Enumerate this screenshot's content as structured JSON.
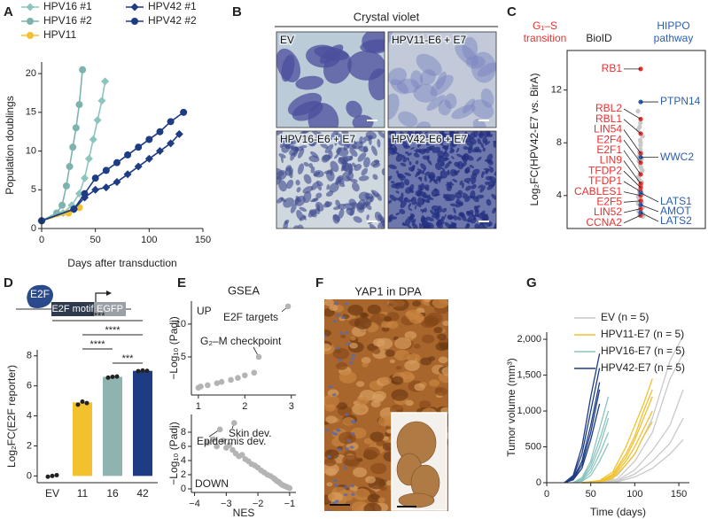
{
  "chart_data": [
    {
      "panel": "A",
      "type": "line",
      "xlabel": "Days after transduction",
      "ylabel": "Population doublings",
      "xlim": [
        0,
        150
      ],
      "ylim": [
        0,
        21.5
      ],
      "xticks": [
        0,
        50,
        100,
        150
      ],
      "yticks": [
        0,
        5,
        10,
        15,
        20
      ],
      "series": [
        {
          "name": "HPV16 #1",
          "color": "#8cc5be",
          "marker": "diamond",
          "x": [
            0,
            20,
            28,
            35,
            40,
            44,
            48,
            52,
            56,
            59
          ],
          "values": [
            1,
            2,
            3,
            4.5,
            6.5,
            9,
            11.5,
            14,
            16.5,
            19
          ]
        },
        {
          "name": "HPV16 #2",
          "color": "#7db3ae",
          "marker": "circle",
          "x": [
            0,
            14,
            19,
            23,
            26,
            29,
            32,
            35,
            38
          ],
          "values": [
            1,
            2,
            3,
            5.5,
            8,
            10.5,
            13,
            16,
            20.5
          ]
        },
        {
          "name": "HPV11",
          "color": "#f2c12e",
          "marker": "circle",
          "x": [
            0,
            25,
            35
          ],
          "values": [
            1,
            2,
            2.7
          ]
        },
        {
          "name": "HPV42 #1",
          "color": "#1d3c84",
          "marker": "diamond",
          "x": [
            0,
            30,
            40,
            50,
            60,
            70,
            80,
            90,
            100,
            110,
            120,
            128
          ],
          "values": [
            1,
            2.5,
            4,
            5,
            5.3,
            6,
            7,
            8,
            9,
            10,
            11,
            12.2
          ]
        },
        {
          "name": "HPV42 #2",
          "color": "#1d3c84",
          "marker": "circle",
          "x": [
            0,
            30,
            40,
            50,
            60,
            70,
            80,
            90,
            100,
            110,
            120,
            132
          ],
          "values": [
            1,
            2.5,
            4.5,
            6.5,
            7.5,
            8.5,
            9.5,
            10.5,
            11.5,
            12.5,
            13.8,
            15
          ]
        }
      ]
    },
    {
      "panel": "C",
      "type": "strip",
      "ylabel": "Log₂FC(HPV42-E7 vs. BirA)",
      "ylim": [
        1.5,
        15
      ],
      "yticks": [
        4,
        8,
        12
      ],
      "frame": true,
      "series": [
        {
          "name": "BioID",
          "color": "#c8c8c8",
          "values": [
            10.4,
            9.5,
            9.2,
            9.0,
            8.5,
            8.2,
            8.0,
            7.8,
            7.5,
            7.3,
            7.0,
            6.8,
            6.6,
            6.3,
            6.1,
            5.9,
            5.7,
            5.4,
            5.2,
            5.0,
            4.8,
            4.7,
            4.5,
            4.4,
            4.2,
            4.1,
            3.9,
            3.8,
            3.7,
            3.5,
            3.4,
            3.2,
            3.1,
            2.9,
            2.8,
            2.7,
            2.6,
            2.5,
            2.4
          ]
        },
        {
          "name": "G₁–S transition",
          "color": "#e8312f",
          "labels": [
            "RB1",
            "RBL2",
            "RBL1",
            "LIN54",
            "E2F4",
            "E2F1",
            "LIN9",
            "TFDP2",
            "TFDP1",
            "CABLES1",
            "E2F5",
            "LIN52",
            "CCNA2"
          ],
          "values": [
            13.6,
            9.8,
            8.7,
            7.2,
            6.5,
            5.6,
            4.9,
            4.6,
            4.3,
            4.0,
            3.6,
            3.0,
            2.5
          ]
        },
        {
          "name": "HIPPO pathway",
          "color": "#2b5fad",
          "labels": [
            "PTPN14",
            "WWC2",
            "LATS1",
            "AMOT",
            "LATS2"
          ],
          "values": [
            11.1,
            6.9,
            4.2,
            3.3,
            2.7
          ]
        }
      ]
    },
    {
      "panel": "D",
      "type": "bar",
      "ylabel": "Log₂FC(E2F reporter)",
      "categories": [
        "EV",
        "11",
        "16",
        "42"
      ],
      "values": [
        0,
        4.9,
        6.6,
        7.0
      ],
      "colors": [
        "#9a9a9a",
        "#f2c12e",
        "#8fb4b0",
        "#1d3c84"
      ],
      "points": [
        [
          -0.05,
          0,
          0.05
        ],
        [
          4.75,
          4.95,
          4.85
        ],
        [
          6.55,
          6.6,
          6.62
        ],
        [
          6.98,
          7.02,
          7.0
        ]
      ],
      "ylim": [
        -0.45,
        8.4
      ],
      "yticks": [
        0,
        2,
        4,
        6,
        8
      ],
      "significance": [
        "****",
        "****",
        "****",
        "***"
      ],
      "reporter": {
        "protein": "E2F",
        "motif": "E2F motif",
        "gene": "EGFP"
      }
    },
    {
      "panel": "E",
      "type": "scatter",
      "title": "GSEA",
      "ylabel": "−Log₁₀ (Padj)",
      "direction": "UP",
      "color": "#b4b4b4",
      "xlim": [
        0.85,
        3.1
      ],
      "ylim": [
        -0.8,
        13.5
      ],
      "xticks": [
        1,
        2,
        3
      ],
      "yticks": [
        5,
        10
      ],
      "x": [
        1.0,
        1.05,
        1.2,
        1.4,
        1.5,
        1.7,
        1.85,
        2.0,
        2.2
      ],
      "values": [
        0.3,
        0.5,
        0.7,
        1.0,
        1.2,
        1.5,
        1.8,
        2.2,
        2.6
      ],
      "labeled_points": [
        {
          "label": "G₂–M checkpoint",
          "x": 2.3,
          "y": 5.0
        },
        {
          "label": "E2F targets",
          "x": 2.93,
          "y": 12.7
        }
      ]
    },
    {
      "type": "scatter",
      "xlabel": "NES",
      "ylabel": "−Log₁₀ (Padj)",
      "direction": "DOWN",
      "color": "#b4b4b4",
      "xlim": [
        -4.1,
        -0.8
      ],
      "ylim": [
        -0.5,
        10.5
      ],
      "xticks": [
        {
          "value": -4,
          "label": "−4"
        },
        {
          "value": -3,
          "label": "−3"
        },
        {
          "value": -2,
          "label": "−2"
        },
        {
          "value": -1,
          "label": "−1"
        }
      ],
      "yticks": [
        0,
        2,
        4,
        6,
        8
      ],
      "x": [
        -3.6,
        -3.4,
        -3.3,
        -3.1,
        -3.0,
        -2.9,
        -2.8,
        -2.7,
        -2.6,
        -2.5,
        -2.4,
        -2.3,
        -2.2,
        -2.1,
        -2.0,
        -1.9,
        -1.8,
        -1.7,
        -1.6,
        -1.5,
        -1.45,
        -1.4,
        -1.35,
        -1.3,
        -1.25,
        -1.2,
        -1.15,
        -1.1,
        -1.05,
        -1.0
      ],
      "values": [
        6.5,
        7.0,
        6.0,
        6.8,
        5.8,
        6.2,
        5.5,
        5.0,
        4.6,
        4.8,
        4.2,
        3.9,
        3.5,
        3.3,
        3.0,
        2.6,
        2.3,
        2.0,
        1.8,
        1.5,
        1.3,
        1.1,
        1.0,
        0.8,
        0.6,
        0.5,
        0.4,
        0.3,
        0.2,
        0.1
      ],
      "labeled_points": [
        {
          "label": "Skin dev.",
          "x": -2.75,
          "y": 9.3
        },
        {
          "label": "Epidermis dev.",
          "x": -3.2,
          "y": 8.4
        }
      ]
    },
    {
      "panel": "G",
      "type": "line",
      "xlabel": "Time (days)",
      "ylabel": "Tumor volume (mm³)",
      "xlim": [
        0,
        162
      ],
      "ylim": [
        0,
        2100
      ],
      "xticks": [
        0,
        50,
        100,
        150
      ],
      "yticks": [
        0,
        500,
        {
          "value": 1000,
          "label": "1,000"
        },
        {
          "value": 1500,
          "label": "1,500"
        },
        {
          "value": 2000,
          "label": "2,000"
        }
      ],
      "groups": [
        {
          "name": "EV (n = 5)",
          "color": "#c9c9c9",
          "x": [
            40,
            60,
            80,
            100,
            120,
            140,
            155
          ],
          "lines": [
            [
              0,
              0,
              30,
              180,
              450,
              800,
              1300
            ],
            [
              0,
              10,
              50,
              300,
              700,
              1450,
              1800
            ],
            [
              0,
              0,
              20,
              120,
              300,
              550,
              900
            ],
            [
              0,
              20,
              100,
              400,
              900,
              1700,
              2050
            ],
            [
              0,
              0,
              10,
              80,
              200,
              400,
              600
            ]
          ]
        },
        {
          "name": "HPV11-E7 (n = 5)",
          "color": "#f2c12e",
          "x": [
            40,
            60,
            75,
            90,
            100,
            110,
            120
          ],
          "lines": [
            [
              0,
              20,
              100,
              350,
              600,
              900,
              1200
            ],
            [
              0,
              10,
              80,
              300,
              500,
              750,
              1000
            ],
            [
              0,
              30,
              150,
              500,
              800,
              1100,
              1450
            ],
            [
              0,
              5,
              60,
              250,
              400,
              650,
              850
            ],
            [
              0,
              15,
              120,
              400,
              650,
              1000,
              1300
            ]
          ]
        },
        {
          "name": "HPV16-E7 (n = 5)",
          "color": "#8cc5be",
          "x": [
            30,
            40,
            50,
            60,
            70
          ],
          "lines": [
            [
              0,
              50,
              250,
              600,
              1000
            ],
            [
              0,
              30,
              150,
              400,
              700
            ],
            [
              0,
              70,
              300,
              750,
              1200
            ],
            [
              0,
              20,
              100,
              300,
              550
            ],
            [
              0,
              40,
              200,
              500,
              900
            ]
          ]
        },
        {
          "name": "HPV42-E7 (n = 5)",
          "color": "#1d3c84",
          "x": [
            20,
            30,
            40,
            50,
            60
          ],
          "lines": [
            [
              0,
              50,
              250,
              700,
              1300
            ],
            [
              0,
              80,
              400,
              1000,
              1600
            ],
            [
              0,
              40,
              200,
              600,
              1100
            ],
            [
              0,
              100,
              500,
              1200,
              1800
            ],
            [
              0,
              60,
              300,
              800,
              1400
            ]
          ]
        }
      ]
    }
  ],
  "images": [
    {
      "panel": "B",
      "title": "Crystal violet",
      "tiles": [
        "EV",
        "HPV11-E6 + E7",
        "HPV16-E6 + E7",
        "HPV42-E6 + E7"
      ]
    },
    {
      "panel": "F",
      "title": "YAP1 in DPA"
    }
  ]
}
